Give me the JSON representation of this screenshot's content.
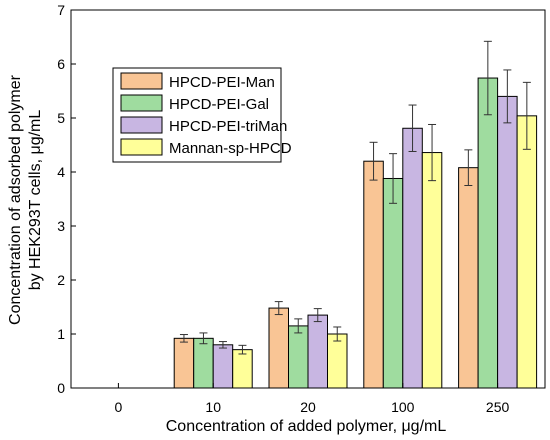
{
  "chart_data": {
    "type": "bar",
    "xlabel": "Concentration of added polymer, μg/mL",
    "ylabel_line1": "Concentration of adsorbed polymer",
    "ylabel_line2": "by HEK293T cells, μg/mL",
    "categories": [
      "0",
      "10",
      "20",
      "100",
      "250"
    ],
    "ylim": [
      0,
      7
    ],
    "yticks": [
      "0",
      "1",
      "2",
      "3",
      "4",
      "5",
      "6",
      "7"
    ],
    "legend_position": "top-left",
    "series": [
      {
        "name": "HPCD-PEI-Man",
        "color": "#f9c595",
        "values": [
          0,
          0.92,
          1.48,
          4.2,
          4.08
        ],
        "errors": [
          0,
          0.07,
          0.12,
          0.35,
          0.33
        ]
      },
      {
        "name": "HPCD-PEI-Gal",
        "color": "#9fdc9f",
        "values": [
          0,
          0.92,
          1.15,
          3.88,
          5.74
        ],
        "errors": [
          0,
          0.1,
          0.13,
          0.46,
          0.68
        ]
      },
      {
        "name": "HPCD-PEI-triMan",
        "color": "#c8b6e2",
        "values": [
          0,
          0.8,
          1.35,
          4.81,
          5.4
        ],
        "errors": [
          0,
          0.06,
          0.12,
          0.43,
          0.49
        ]
      },
      {
        "name": "Mannan-sp-HPCD",
        "color": "#ffff99",
        "values": [
          0,
          0.71,
          1.0,
          4.36,
          5.04
        ],
        "errors": [
          0,
          0.08,
          0.13,
          0.52,
          0.62
        ]
      }
    ]
  }
}
